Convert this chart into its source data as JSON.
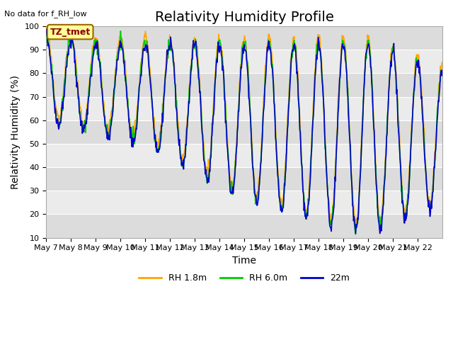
{
  "title": "Relativity Humidity Profile",
  "subtitle": "No data for f_RH_low",
  "xlabel": "Time",
  "ylabel": "Relativity Humidity (%)",
  "ylim": [
    10,
    100
  ],
  "yticks": [
    10,
    20,
    30,
    40,
    50,
    60,
    70,
    80,
    90,
    100
  ],
  "xtick_labels": [
    "May 7",
    "May 8",
    "May 9",
    "May 10",
    "May 11",
    "May 12",
    "May 13",
    "May 14",
    "May 15",
    "May 16",
    "May 17",
    "May 18",
    "May 19",
    "May 20",
    "May 21",
    "May 22"
  ],
  "station_label": "TZ_tmet",
  "colors": {
    "rh18": "#FFA500",
    "rh60": "#00CC00",
    "rh22": "#0000CC",
    "band_dark": "#DCDCDC",
    "band_light": "#EBEBEB",
    "grid": "#FFFFFF"
  },
  "legend": [
    "RH 1.8m",
    "RH 6.0m",
    "22m"
  ],
  "title_fontsize": 14,
  "label_fontsize": 10,
  "tick_fontsize": 8
}
